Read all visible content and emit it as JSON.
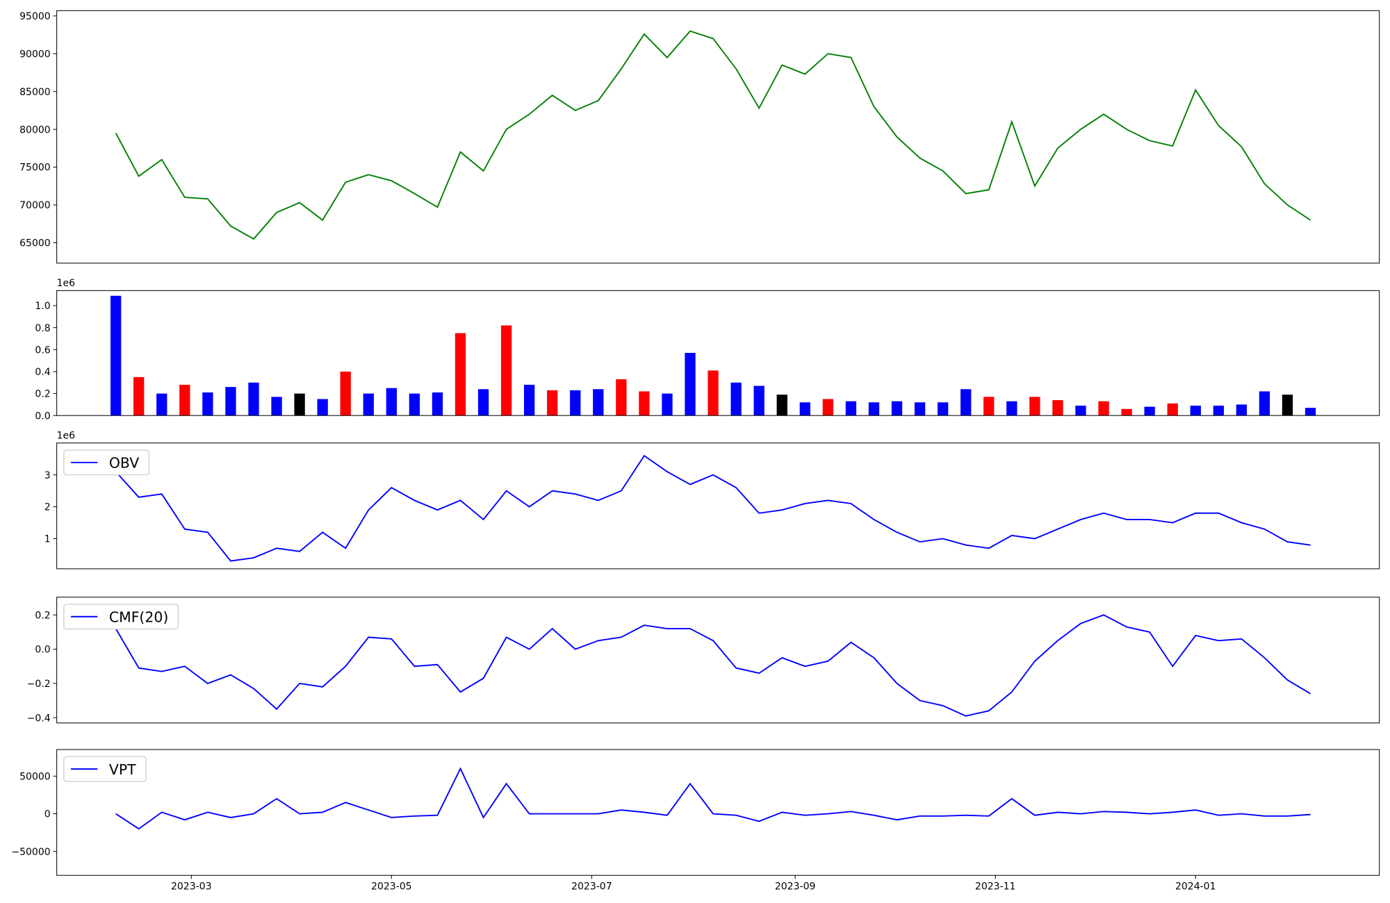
{
  "chart_data": [
    {
      "type": "line",
      "color": "green",
      "x": [
        "2023-02-06",
        "2023-02-13",
        "2023-02-20",
        "2023-02-27",
        "2023-03-06",
        "2023-03-13",
        "2023-03-20",
        "2023-03-27",
        "2023-04-03",
        "2023-04-10",
        "2023-04-17",
        "2023-04-24",
        "2023-05-01",
        "2023-05-08",
        "2023-05-15",
        "2023-05-22",
        "2023-05-29",
        "2023-06-05",
        "2023-06-12",
        "2023-06-19",
        "2023-06-26",
        "2023-07-03",
        "2023-07-10",
        "2023-07-17",
        "2023-07-24",
        "2023-07-31",
        "2023-08-07",
        "2023-08-14",
        "2023-08-21",
        "2023-08-28",
        "2023-09-04",
        "2023-09-11",
        "2023-09-18",
        "2023-09-25",
        "2023-10-02",
        "2023-10-09",
        "2023-10-16",
        "2023-10-23",
        "2023-10-30",
        "2023-11-06",
        "2023-11-13",
        "2023-11-20",
        "2023-11-27",
        "2023-12-04",
        "2023-12-11",
        "2023-12-18",
        "2023-12-25",
        "2024-01-01",
        "2024-01-08",
        "2024-01-15",
        "2024-01-22",
        "2024-01-29",
        "2024-02-05"
      ],
      "values": [
        79500,
        73800,
        76000,
        71000,
        70800,
        67200,
        65500,
        69000,
        70300,
        68000,
        73000,
        74000,
        73200,
        71500,
        69700,
        77000,
        74500,
        80000,
        82000,
        84500,
        82500,
        83800,
        88000,
        92600,
        89500,
        93000,
        92000,
        88000,
        82800,
        88500,
        87300,
        90000,
        89500,
        83000,
        79000,
        76200,
        74500,
        71500,
        72000,
        81000,
        72500,
        77500,
        80000,
        82000,
        80000,
        78500,
        77800,
        85200,
        80500,
        77700,
        72800,
        70000,
        68000
      ],
      "xlim": [
        "2023-01-19",
        "2024-02-26"
      ],
      "ylim": [
        62300,
        95700
      ],
      "yticks": [
        65000,
        70000,
        75000,
        80000,
        85000,
        90000,
        95000
      ]
    },
    {
      "type": "bar",
      "y_offset_label": "1e6",
      "x": [
        "2023-02-06",
        "2023-02-13",
        "2023-02-20",
        "2023-02-27",
        "2023-03-06",
        "2023-03-13",
        "2023-03-20",
        "2023-03-27",
        "2023-04-03",
        "2023-04-10",
        "2023-04-17",
        "2023-04-24",
        "2023-05-01",
        "2023-05-08",
        "2023-05-15",
        "2023-05-22",
        "2023-05-29",
        "2023-06-05",
        "2023-06-12",
        "2023-06-19",
        "2023-06-26",
        "2023-07-03",
        "2023-07-10",
        "2023-07-17",
        "2023-07-24",
        "2023-07-31",
        "2023-08-07",
        "2023-08-14",
        "2023-08-21",
        "2023-08-28",
        "2023-09-04",
        "2023-09-11",
        "2023-09-18",
        "2023-09-25",
        "2023-10-02",
        "2023-10-09",
        "2023-10-16",
        "2023-10-23",
        "2023-10-30",
        "2023-11-06",
        "2023-11-13",
        "2023-11-20",
        "2023-11-27",
        "2023-12-04",
        "2023-12-11",
        "2023-12-18",
        "2023-12-25",
        "2024-01-01",
        "2024-01-08",
        "2024-01-15",
        "2024-01-22",
        "2024-01-29",
        "2024-02-05"
      ],
      "values": [
        1090000,
        350000,
        200000,
        280000,
        210000,
        260000,
        300000,
        170000,
        200000,
        150000,
        400000,
        200000,
        250000,
        200000,
        210000,
        750000,
        240000,
        820000,
        280000,
        230000,
        230000,
        240000,
        330000,
        220000,
        200000,
        570000,
        410000,
        300000,
        270000,
        190000,
        120000,
        150000,
        130000,
        120000,
        130000,
        120000,
        120000,
        240000,
        170000,
        130000,
        170000,
        140000,
        90000,
        130000,
        60000,
        80000,
        110000,
        90000,
        90000,
        100000,
        220000,
        190000,
        70000
      ],
      "colors": [
        "blue",
        "red",
        "blue",
        "red",
        "blue",
        "blue",
        "blue",
        "blue",
        "black",
        "blue",
        "red",
        "blue",
        "blue",
        "blue",
        "blue",
        "red",
        "blue",
        "red",
        "blue",
        "red",
        "blue",
        "blue",
        "red",
        "red",
        "blue",
        "blue",
        "red",
        "blue",
        "blue",
        "black",
        "blue",
        "red",
        "blue",
        "blue",
        "blue",
        "blue",
        "blue",
        "blue",
        "red",
        "blue",
        "red",
        "red",
        "blue",
        "red",
        "red",
        "blue",
        "red",
        "blue",
        "blue",
        "blue",
        "blue",
        "black",
        "blue"
      ],
      "xlim": [
        "2023-01-19",
        "2024-02-26"
      ],
      "ylim": [
        0,
        1137000
      ],
      "yticks": [
        {
          "value": 0,
          "label": "0.0"
        },
        {
          "value": 200000,
          "label": "0.2"
        },
        {
          "value": 400000,
          "label": "0.4"
        },
        {
          "value": 600000,
          "label": "0.6"
        },
        {
          "value": 800000,
          "label": "0.8"
        },
        {
          "value": 1000000,
          "label": "1.0"
        }
      ]
    },
    {
      "type": "line",
      "y_offset_label": "1e6",
      "legend": "upper left",
      "x": [
        "2023-02-06",
        "2023-02-13",
        "2023-02-20",
        "2023-02-27",
        "2023-03-06",
        "2023-03-13",
        "2023-03-20",
        "2023-03-27",
        "2023-04-03",
        "2023-04-10",
        "2023-04-17",
        "2023-04-24",
        "2023-05-01",
        "2023-05-08",
        "2023-05-15",
        "2023-05-22",
        "2023-05-29",
        "2023-06-05",
        "2023-06-12",
        "2023-06-19",
        "2023-06-26",
        "2023-07-03",
        "2023-07-10",
        "2023-07-17",
        "2023-07-24",
        "2023-07-31",
        "2023-08-07",
        "2023-08-14",
        "2023-08-21",
        "2023-08-28",
        "2023-09-04",
        "2023-09-11",
        "2023-09-18",
        "2023-09-25",
        "2023-10-02",
        "2023-10-09",
        "2023-10-16",
        "2023-10-23",
        "2023-10-30",
        "2023-11-06",
        "2023-11-13",
        "2023-11-20",
        "2023-11-27",
        "2023-12-04",
        "2023-12-11",
        "2023-12-18",
        "2023-12-25",
        "2024-01-01",
        "2024-01-08",
        "2024-01-15",
        "2024-01-22",
        "2024-01-29",
        "2024-02-05"
      ],
      "series": [
        {
          "name": "OBV",
          "color": "blue",
          "values": [
            3100000,
            2300000,
            2400000,
            1300000,
            1200000,
            300000,
            400000,
            700000,
            600000,
            1200000,
            700000,
            1900000,
            2600000,
            2200000,
            1900000,
            2200000,
            1600000,
            2500000,
            2000000,
            2500000,
            2400000,
            2200000,
            2500000,
            3600000,
            3100000,
            2700000,
            3000000,
            2600000,
            1800000,
            1900000,
            2100000,
            2200000,
            2100000,
            1600000,
            1200000,
            900000,
            1000000,
            800000,
            700000,
            1100000,
            1000000,
            1300000,
            1600000,
            1800000,
            1600000,
            1600000,
            1500000,
            1800000,
            1800000,
            1500000,
            1300000,
            900000,
            800000
          ]
        }
      ],
      "xlim": [
        "2023-01-19",
        "2024-02-26"
      ],
      "ylim": [
        55000,
        4000000
      ],
      "yticks": [
        {
          "value": 1000000,
          "label": "1"
        },
        {
          "value": 2000000,
          "label": "2"
        },
        {
          "value": 3000000,
          "label": "3"
        }
      ]
    },
    {
      "type": "line",
      "legend": "upper left",
      "x": [
        "2023-02-06",
        "2023-02-13",
        "2023-02-20",
        "2023-02-27",
        "2023-03-06",
        "2023-03-13",
        "2023-03-20",
        "2023-03-27",
        "2023-04-03",
        "2023-04-10",
        "2023-04-17",
        "2023-04-24",
        "2023-05-01",
        "2023-05-08",
        "2023-05-15",
        "2023-05-22",
        "2023-05-29",
        "2023-06-05",
        "2023-06-12",
        "2023-06-19",
        "2023-06-26",
        "2023-07-03",
        "2023-07-10",
        "2023-07-17",
        "2023-07-24",
        "2023-07-31",
        "2023-08-07",
        "2023-08-14",
        "2023-08-21",
        "2023-08-28",
        "2023-09-04",
        "2023-09-11",
        "2023-09-18",
        "2023-09-25",
        "2023-10-02",
        "2023-10-09",
        "2023-10-16",
        "2023-10-23",
        "2023-10-30",
        "2023-11-06",
        "2023-11-13",
        "2023-11-20",
        "2023-11-27",
        "2023-12-04",
        "2023-12-11",
        "2023-12-18",
        "2023-12-25",
        "2024-01-01",
        "2024-01-08",
        "2024-01-15",
        "2024-01-22",
        "2024-01-29",
        "2024-02-05"
      ],
      "series": [
        {
          "name": "CMF(20)",
          "color": "blue",
          "values": [
            0.12,
            -0.11,
            -0.13,
            -0.1,
            -0.2,
            -0.15,
            -0.23,
            -0.35,
            -0.2,
            -0.22,
            -0.1,
            0.07,
            0.06,
            -0.1,
            -0.09,
            -0.25,
            -0.17,
            0.07,
            0.0,
            0.12,
            0.0,
            0.05,
            0.07,
            0.14,
            0.12,
            0.12,
            0.05,
            -0.11,
            -0.14,
            -0.05,
            -0.1,
            -0.07,
            0.04,
            -0.05,
            -0.2,
            -0.3,
            -0.33,
            -0.39,
            -0.36,
            -0.25,
            -0.07,
            0.05,
            0.15,
            0.2,
            0.13,
            0.1,
            -0.1,
            0.08,
            0.05,
            0.06,
            -0.05,
            -0.18,
            -0.26
          ]
        }
      ],
      "xlim": [
        "2023-01-19",
        "2024-02-26"
      ],
      "ylim": [
        -0.431,
        0.304
      ],
      "yticks": [
        {
          "value": -0.4,
          "label": "−0.4"
        },
        {
          "value": -0.2,
          "label": "−0.2"
        },
        {
          "value": 0,
          "label": "0.0"
        },
        {
          "value": 0.2,
          "label": "0.2"
        }
      ]
    },
    {
      "type": "line",
      "legend": "upper left",
      "x": [
        "2023-02-06",
        "2023-02-13",
        "2023-02-20",
        "2023-02-27",
        "2023-03-06",
        "2023-03-13",
        "2023-03-20",
        "2023-03-27",
        "2023-04-03",
        "2023-04-10",
        "2023-04-17",
        "2023-04-24",
        "2023-05-01",
        "2023-05-08",
        "2023-05-15",
        "2023-05-22",
        "2023-05-29",
        "2023-06-05",
        "2023-06-12",
        "2023-06-19",
        "2023-06-26",
        "2023-07-03",
        "2023-07-10",
        "2023-07-17",
        "2023-07-24",
        "2023-07-31",
        "2023-08-07",
        "2023-08-14",
        "2023-08-21",
        "2023-08-28",
        "2023-09-04",
        "2023-09-11",
        "2023-09-18",
        "2023-09-25",
        "2023-10-02",
        "2023-10-09",
        "2023-10-16",
        "2023-10-23",
        "2023-10-30",
        "2023-11-06",
        "2023-11-13",
        "2023-11-20",
        "2023-11-27",
        "2023-12-04",
        "2023-12-11",
        "2023-12-18",
        "2023-12-25",
        "2024-01-01",
        "2024-01-08",
        "2024-01-15",
        "2024-01-22",
        "2024-01-29",
        "2024-02-05"
      ],
      "series": [
        {
          "name": "VPT",
          "color": "blue",
          "values": [
            0,
            -20000,
            2000,
            -8000,
            2000,
            -5000,
            0,
            20000,
            0,
            2000,
            15000,
            5000,
            -5000,
            -3000,
            -2000,
            60000,
            -5000,
            40000,
            0,
            0,
            0,
            0,
            5000,
            2000,
            -2000,
            40000,
            0,
            -2000,
            -10000,
            2000,
            -2000,
            0,
            3000,
            -2000,
            -8000,
            -3000,
            -3000,
            -2000,
            -3000,
            20000,
            -2000,
            2000,
            0,
            3000,
            2000,
            0,
            2000,
            5000,
            -2000,
            0,
            -3000,
            -3000,
            -1000
          ]
        }
      ],
      "xlim": [
        "2023-01-19",
        "2024-02-26"
      ],
      "ylim": [
        -81800,
        85300
      ],
      "yticks": [
        {
          "value": -50000,
          "label": "−50000"
        },
        0,
        50000
      ],
      "xticks": [
        {
          "value": "2023-03-01",
          "label": "2023-03"
        },
        {
          "value": "2023-05-01",
          "label": "2023-05"
        },
        {
          "value": "2023-07-01",
          "label": "2023-07"
        },
        {
          "value": "2023-09-01",
          "label": "2023-09"
        },
        {
          "value": "2023-11-01",
          "label": "2023-11"
        },
        {
          "value": "2024-01-01",
          "label": "2024-01"
        }
      ]
    }
  ]
}
